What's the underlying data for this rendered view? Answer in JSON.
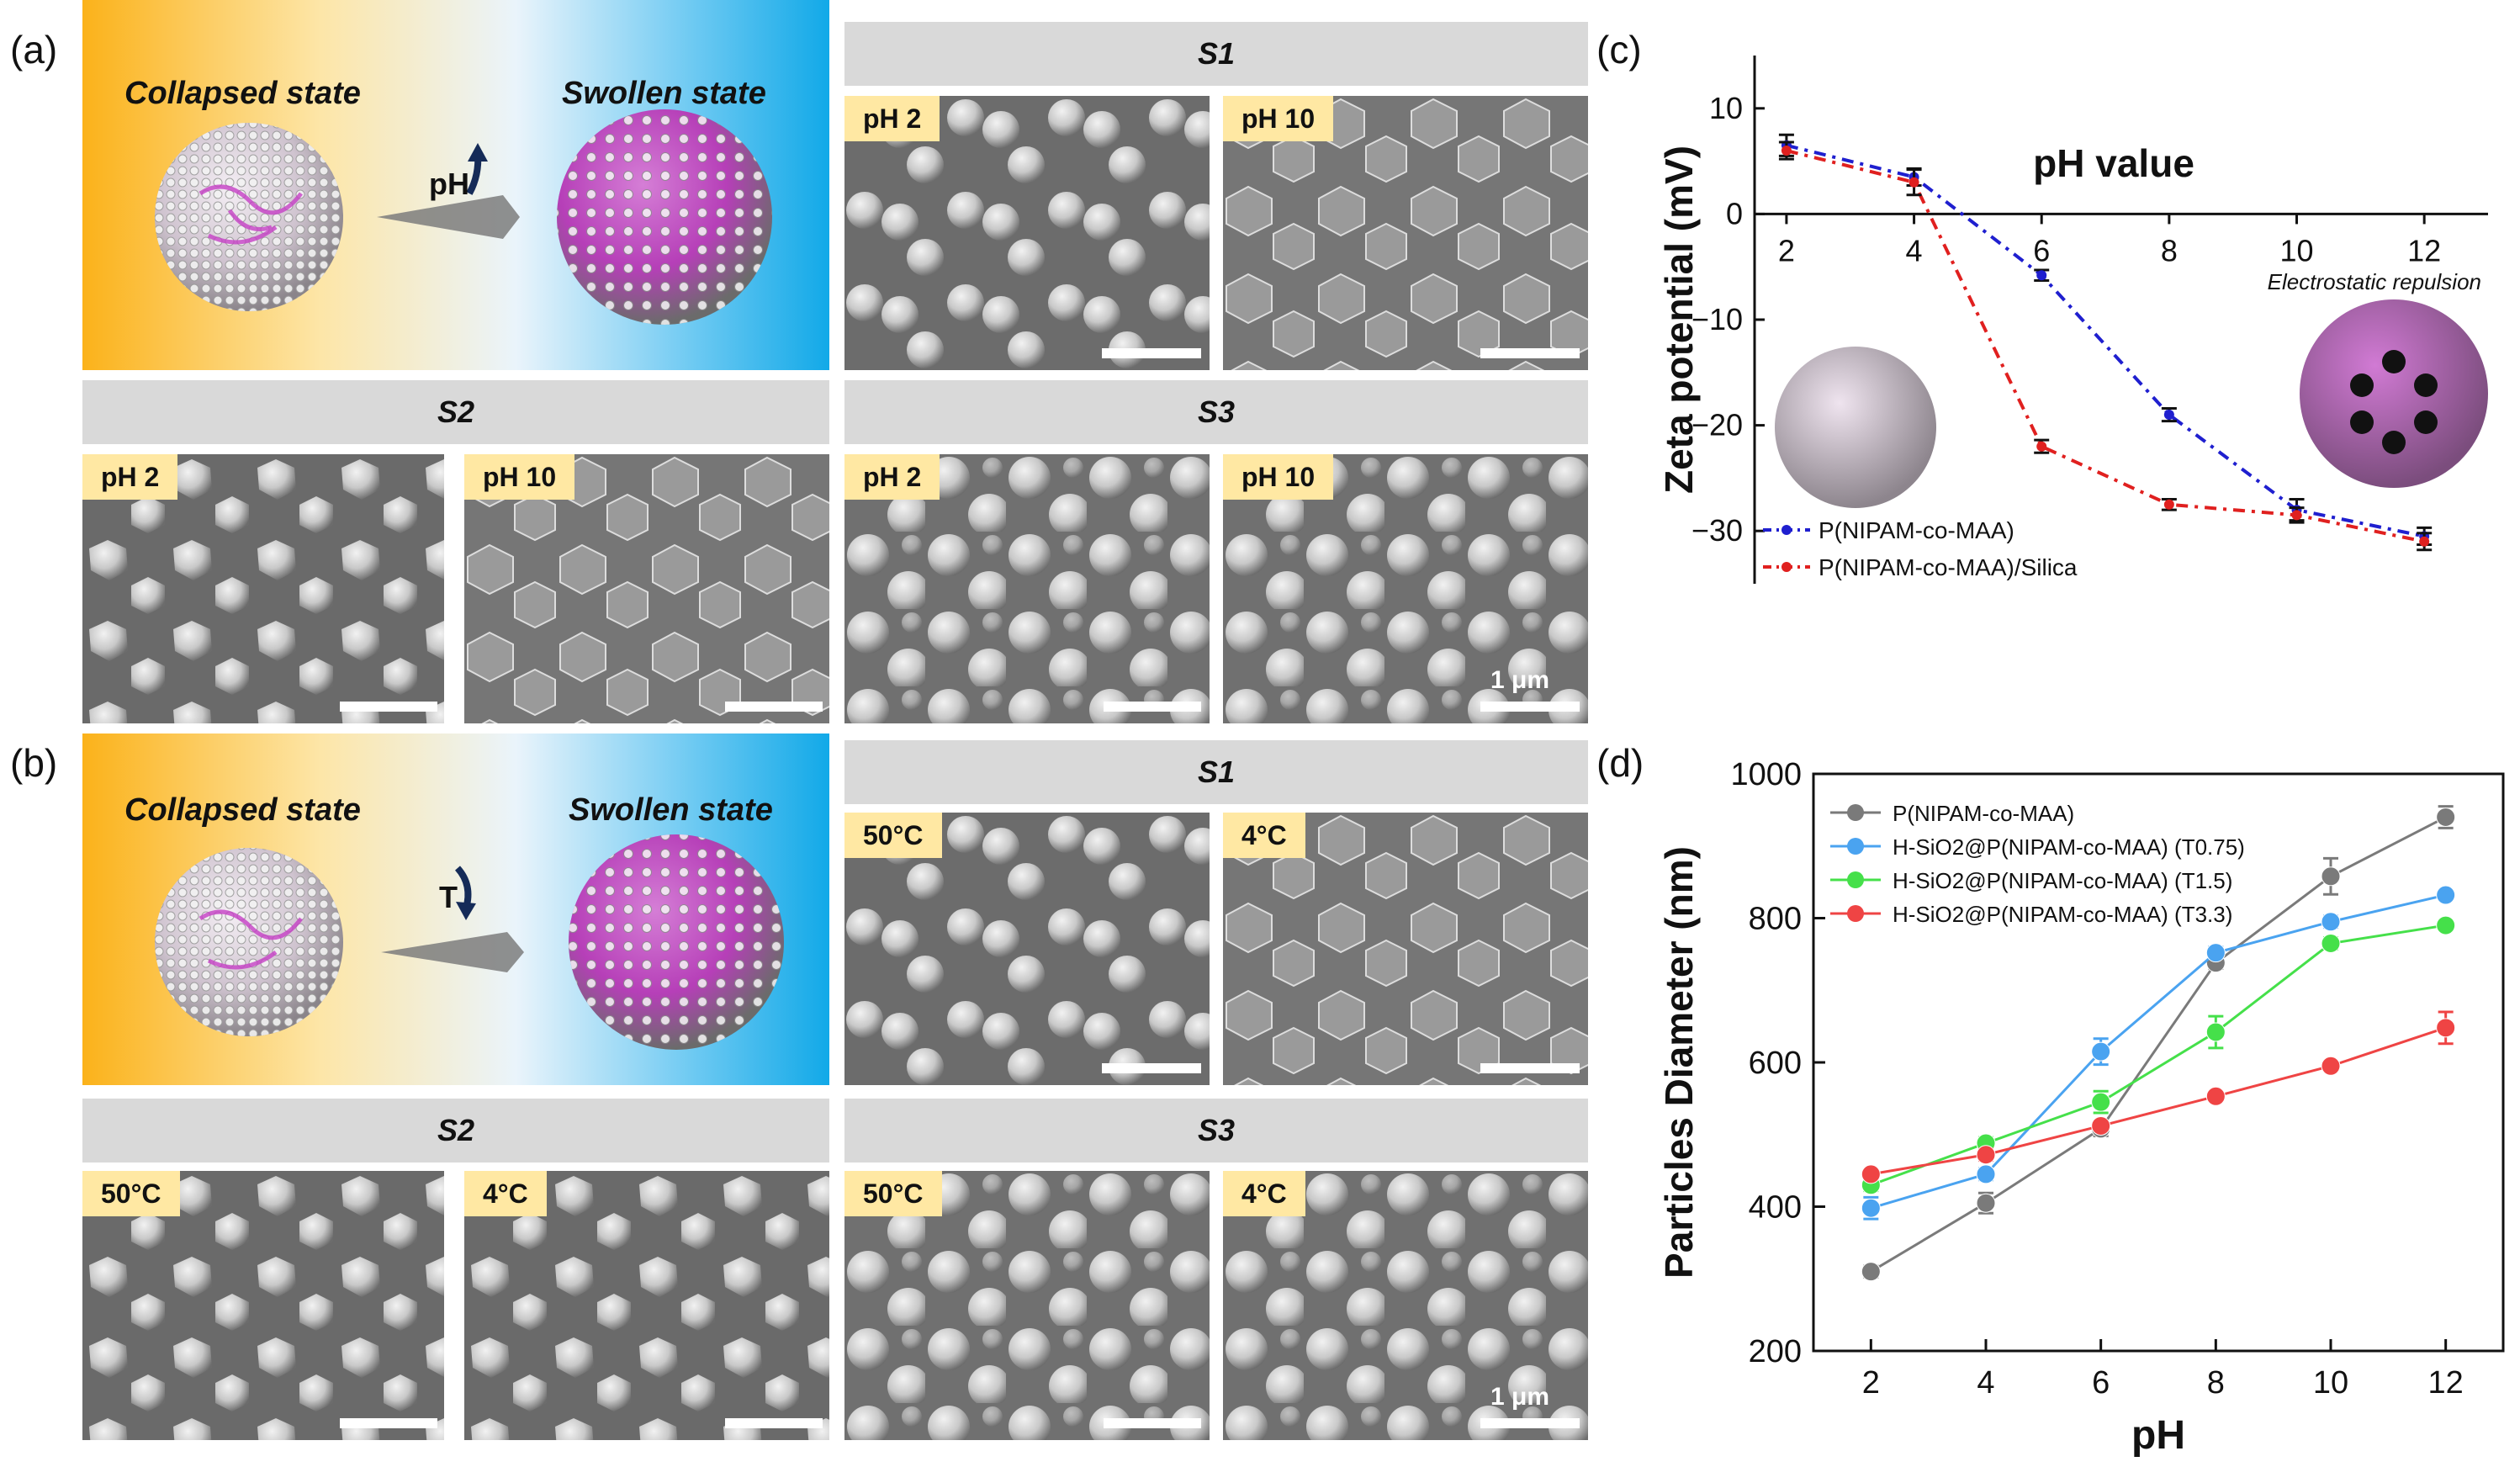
{
  "panel_labels": {
    "a": "(a)",
    "b": "(b)",
    "c": "(c)",
    "d": "(d)"
  },
  "scheme_a": {
    "left_label": "Collapsed state",
    "right_label": "Swollen state",
    "stimulus": "pH"
  },
  "scheme_b": {
    "left_label": "Collapsed state",
    "right_label": "Swollen state",
    "stimulus": "T"
  },
  "sem_groups": {
    "a_s1": {
      "title": "S1",
      "left_tag": "pH 2",
      "right_tag": "pH 10"
    },
    "a_s2": {
      "title": "S2",
      "left_tag": "pH 2",
      "right_tag": "pH 10"
    },
    "a_s3": {
      "title": "S3",
      "left_tag": "pH 2",
      "right_tag": "pH 10",
      "scale": "1 μm"
    },
    "b_s1": {
      "title": "S1",
      "left_tag": "50°C",
      "right_tag": "4°C"
    },
    "b_s2": {
      "title": "S2",
      "left_tag": "50°C",
      "right_tag": "4°C"
    },
    "b_s3": {
      "title": "S3",
      "left_tag": "50°C",
      "right_tag": "4°C",
      "scale": "1 μm"
    }
  },
  "chart_data": [
    {
      "type": "line",
      "panel": "c",
      "title": "",
      "xlabel": "pH value",
      "ylabel": "Zeta potential (mV)",
      "xlim": [
        1.5,
        13
      ],
      "ylim": [
        -35,
        15
      ],
      "xticks": [
        2,
        4,
        6,
        8,
        10,
        12
      ],
      "yticks": [
        10,
        0,
        -10,
        -20,
        -30
      ],
      "annotation": "Electrostatic repulsion",
      "legend_position": "bottom-left",
      "x": [
        2,
        4,
        6,
        8,
        10,
        12
      ],
      "series": [
        {
          "name": "P(NIPAM-co-MAA)",
          "color": "#1f1fcf",
          "values": [
            6.5,
            3.5,
            -5.8,
            -19,
            -28,
            -30.5
          ],
          "errors": [
            1,
            0.8,
            0.5,
            0.6,
            1,
            0.8
          ]
        },
        {
          "name": "P(NIPAM-co-MAA)/Silica",
          "color": "#e0201f",
          "values": [
            6.0,
            3.0,
            -22,
            -27.5,
            -28.5,
            -31
          ],
          "errors": [
            0.8,
            1.2,
            0.6,
            0.5,
            0.7,
            0.8
          ]
        }
      ]
    },
    {
      "type": "line",
      "panel": "d",
      "title": "",
      "xlabel": "pH",
      "ylabel": "Particles Diameter (nm)",
      "xlim": [
        1,
        13
      ],
      "ylim": [
        200,
        1000
      ],
      "xticks": [
        2,
        4,
        6,
        8,
        10,
        12
      ],
      "yticks": [
        200,
        400,
        600,
        800,
        1000
      ],
      "legend_position": "top-left",
      "x": [
        2,
        4,
        6,
        8,
        10,
        12
      ],
      "series": [
        {
          "name": "P(NIPAM-co-MAA)",
          "color": "#7a7a7a",
          "values": [
            310,
            405,
            508,
            738,
            858,
            940
          ],
          "errors": [
            8,
            14,
            10,
            8,
            25,
            15
          ]
        },
        {
          "name": "H-SiO2@P(NIPAM-co-MAA) (T0.75)",
          "color": "#4aa3f0",
          "values": [
            398,
            445,
            615,
            752,
            795,
            832
          ],
          "errors": [
            15,
            8,
            18,
            8,
            8,
            5
          ]
        },
        {
          "name": "H-SiO2@P(NIPAM-co-MAA) (T1.5)",
          "color": "#45e04a",
          "values": [
            430,
            488,
            545,
            642,
            765,
            790
          ],
          "errors": [
            8,
            8,
            15,
            22,
            8,
            5
          ]
        },
        {
          "name": "H-SiO2@P(NIPAM-co-MAA) (T3.3)",
          "color": "#ef4444",
          "values": [
            445,
            472,
            512,
            553,
            595,
            648
          ],
          "errors": [
            5,
            8,
            6,
            5,
            5,
            22
          ]
        }
      ]
    }
  ]
}
